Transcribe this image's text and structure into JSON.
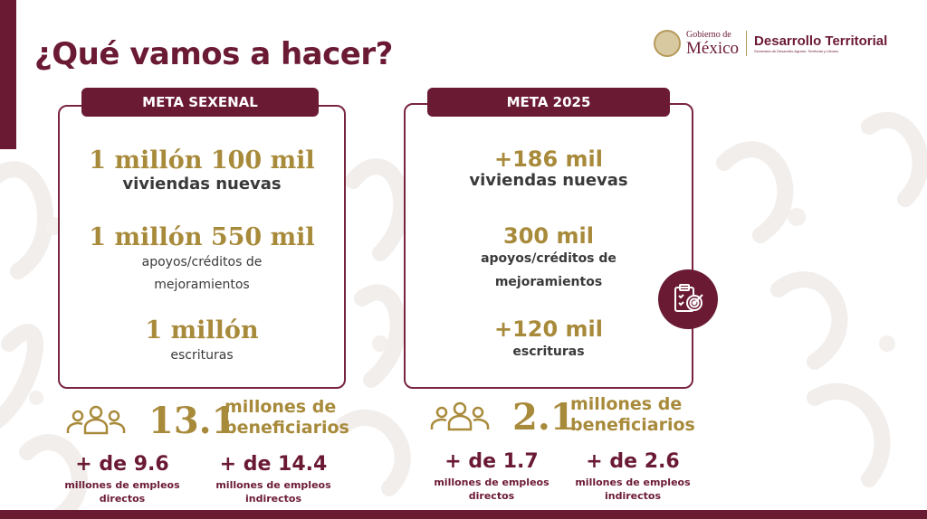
{
  "title": "¿Qué vamos a hacer?",
  "logo": {
    "gov_small": "Gobierno de",
    "gov_big": "México",
    "agency": "Desarrollo Territorial",
    "agency_sub": "Secretaría de Desarrollo Agrario, Territorial y Urbano"
  },
  "left_card": {
    "header": "META SEXENAL",
    "stat1_value": "1 millón 100 mil",
    "stat1_label": "viviendas nuevas",
    "stat2_value": "1 millón 550 mil",
    "stat2_label_1": "apoyos/créditos de",
    "stat2_label_2": "mejoramientos",
    "stat3_value": "1 millón",
    "stat3_label": "escrituras"
  },
  "right_card": {
    "header": "META 2025",
    "stat1_value": "+186 mil",
    "stat1_label": "viviendas nuevas",
    "stat2_value": "300 mil",
    "stat2_label_1": "apoyos/créditos de",
    "stat2_label_2": "mejoramientos",
    "stat3_value": "+120 mil",
    "stat3_label": "escrituras"
  },
  "left_beneficiaries": {
    "value": "13.1",
    "label_1": "millones de",
    "label_2": "beneficiarios"
  },
  "right_beneficiaries": {
    "value": "2.1",
    "label_1": "millones de",
    "label_2": "beneficiarios"
  },
  "left_jobs": {
    "direct_value": "+ de 9.6",
    "direct_label_1": "millones de empleos",
    "direct_label_2": "directos",
    "indirect_value": "+ de 14.4",
    "indirect_label_1": "millones de empleos",
    "indirect_label_2": "indirectos"
  },
  "right_jobs": {
    "direct_value": "+ de 1.7",
    "direct_label_1": "millones de empleos",
    "direct_label_2": "directos",
    "indirect_value": "+ de 2.6",
    "indirect_label_1": "millones de empleos",
    "indirect_label_2": "indirectos"
  },
  "colors": {
    "primary": "#6b1a34",
    "gold": "#a88a3b",
    "text": "#3a3a3a"
  },
  "icons": {
    "people": "people-group-icon",
    "target": "clipboard-target-icon",
    "seal": "government-seal-icon"
  }
}
